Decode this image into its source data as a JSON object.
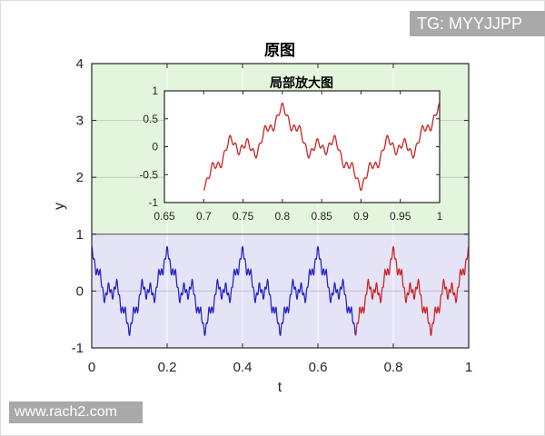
{
  "watermarks": {
    "top_right": "TG: MYYJJPP",
    "bottom_left": "www.rach2.com",
    "background_color": "#A9A9A9",
    "text_color": "#FFFFFF"
  },
  "chart_data": {
    "type": "line",
    "title": "原图",
    "xlabel": "t",
    "ylabel": "y",
    "xlim": [
      0,
      1
    ],
    "ylim": [
      -1,
      4
    ],
    "xticks": [
      0,
      0.2,
      0.4,
      0.6,
      0.8,
      1
    ],
    "xtick_labels": [
      "0",
      "0.2",
      "0.4",
      "0.6",
      "0.8",
      "1"
    ],
    "yticks": [
      -1,
      0,
      1,
      2,
      3,
      4
    ],
    "ytick_labels": [
      "-1",
      "0",
      "1",
      "2",
      "3",
      "4"
    ],
    "grid": true,
    "axis_color": "#262626",
    "regions": [
      {
        "name": "upper-region",
        "x": [
          0,
          1
        ],
        "y": [
          1,
          4
        ],
        "fill": "#E3F5DD"
      },
      {
        "name": "lower-region",
        "x": [
          0,
          1
        ],
        "y": [
          -1,
          1
        ],
        "fill": "#E5E4F7"
      }
    ],
    "region_boundary": {
      "y": 1,
      "color": "#75757F"
    },
    "series": [
      {
        "name": "signal-segment-1",
        "color": "#2222C4",
        "t_range": [
          0,
          0.7
        ]
      },
      {
        "name": "signal-segment-2",
        "color": "#CC2222",
        "t_range": [
          0.7,
          1.0
        ]
      }
    ],
    "signal": {
      "type": "weierstrass_cos_sum",
      "description": "fractal wave: sum of a^k * cos(2*pi*f*b^k*t), oscillates roughly between -0.8 and 0.8 with period 0.2",
      "base_freq": 5,
      "freq_ratio": 3,
      "amp_ratio": 0.55,
      "components": 4,
      "peak_amplitude": 0.78
    },
    "inset": {
      "title": "局部放大图",
      "xlim": [
        0.65,
        1
      ],
      "ylim": [
        -1,
        1
      ],
      "xticks": [
        0.65,
        0.7,
        0.75,
        0.8,
        0.85,
        0.9,
        0.95,
        1
      ],
      "xtick_labels": [
        "0.65",
        "0.7",
        "0.75",
        "0.8",
        "0.85",
        "0.9",
        "0.95",
        "1"
      ],
      "yticks": [
        -1,
        -0.5,
        0,
        0.5,
        1
      ],
      "ytick_labels": [
        "-1",
        "-0.5",
        "0",
        "0.5",
        "1"
      ],
      "background": "#FFFFFF",
      "series": [
        {
          "name": "signal-zoomed",
          "color": "#CC2222",
          "t_range": [
            0.7,
            1.0
          ]
        }
      ]
    }
  }
}
